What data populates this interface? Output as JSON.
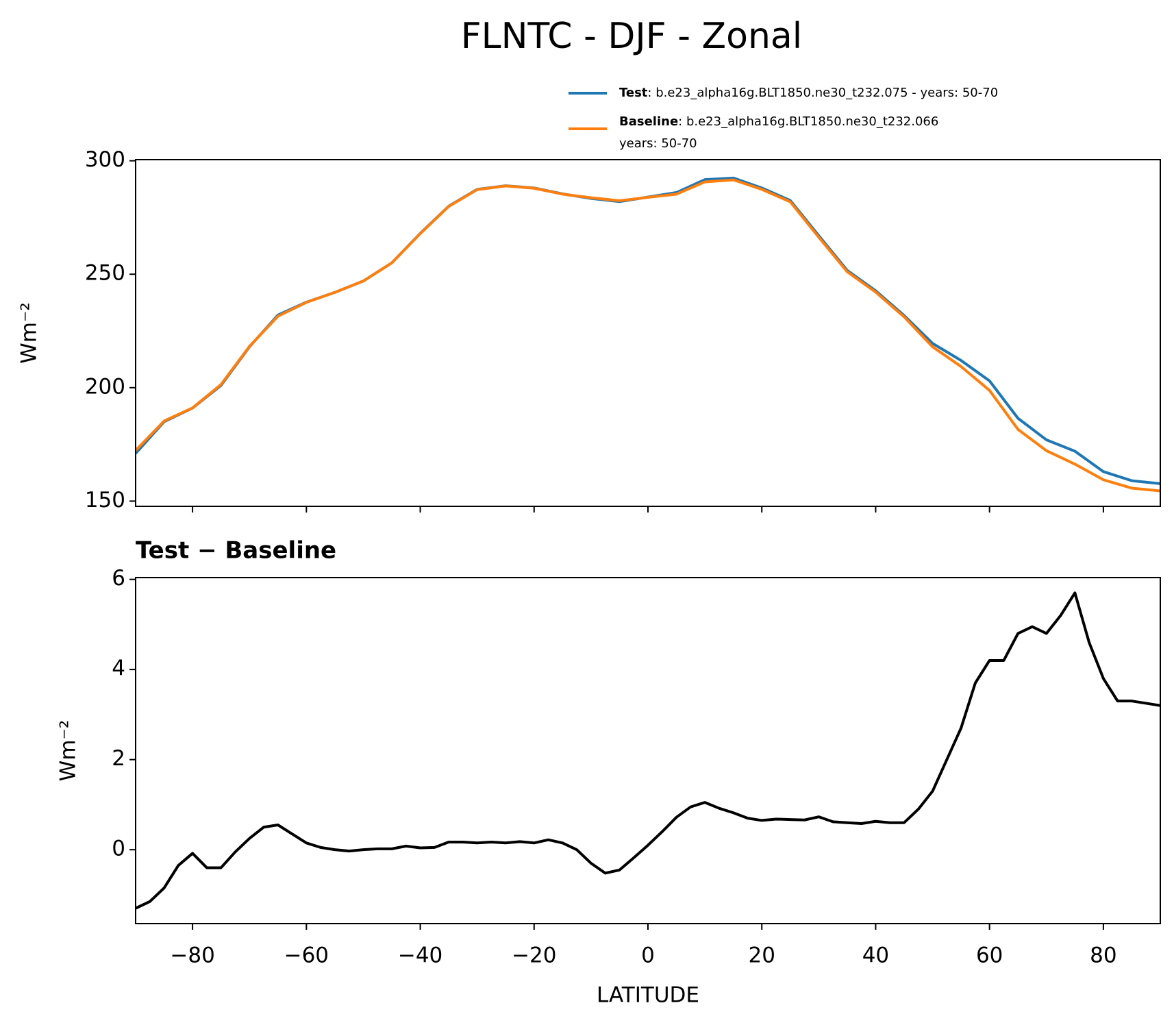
{
  "chart_data": [
    {
      "type": "line",
      "title": "FLNTC - DJF - Zonal",
      "ylabel": "Wm⁻²",
      "x": [
        -90,
        -85,
        -80,
        -75,
        -70,
        -65,
        -60,
        -55,
        -50,
        -45,
        -40,
        -35,
        -30,
        -25,
        -20,
        -15,
        -10,
        -5,
        0,
        5,
        10,
        15,
        20,
        25,
        30,
        35,
        40,
        45,
        50,
        55,
        60,
        65,
        70,
        75,
        80,
        85,
        90
      ],
      "series": [
        {
          "name": "Test",
          "legend_text": [
            ": b.e23_alpha16g.BLT1850.ne30_t232.075 - years: 50-70"
          ],
          "color": "#1f77b4",
          "values": [
            171,
            185,
            191,
            201,
            218,
            232,
            237.7,
            242,
            247,
            255,
            268,
            280,
            287.4,
            289,
            288,
            285.4,
            283.4,
            282,
            284,
            286,
            291.7,
            292.4,
            288,
            282.5,
            267,
            251.7,
            242.7,
            231.8,
            219.5,
            212,
            203,
            186.5,
            177,
            172,
            163,
            159,
            157.7
          ]
        },
        {
          "name": "Baseline",
          "legend_text": [
            ": b.e23_alpha16g.BLT1850.ne30_t232.066",
            "years: 50-70"
          ],
          "color": "#ff7f0e",
          "values": [
            172.3,
            185.3,
            191.1,
            201.4,
            218.2,
            231.5,
            237.6,
            242,
            247,
            255,
            267.9,
            279.9,
            287.3,
            288.9,
            287.9,
            285.3,
            283.7,
            282.4,
            283.9,
            285.3,
            290.7,
            291.6,
            287.4,
            281.9,
            266.3,
            251.1,
            242.1,
            231.2,
            218,
            209.3,
            198.8,
            181.6,
            172.2,
            166.3,
            159.4,
            155.7,
            154.5
          ]
        }
      ],
      "xlim": [
        -90,
        90
      ],
      "xticks": [
        -80,
        -60,
        -40,
        -20,
        0,
        20,
        40,
        60,
        80
      ],
      "xtick_labels": false,
      "ylim": [
        147.7,
        300.5
      ],
      "yticks": [
        150,
        200,
        250,
        300
      ],
      "grid": false
    },
    {
      "type": "line",
      "title": "Test − Baseline",
      "ylabel": "Wm⁻²",
      "xlabel": "LATITUDE",
      "x": [
        -90,
        -87.5,
        -85,
        -82.5,
        -80,
        -77.5,
        -75,
        -72.5,
        -70,
        -67.5,
        -65,
        -62.5,
        -60,
        -57.5,
        -55,
        -52.5,
        -50,
        -47.5,
        -45,
        -42.5,
        -40,
        -37.5,
        -35,
        -32.5,
        -30,
        -27.5,
        -25,
        -22.5,
        -20,
        -17.5,
        -15,
        -12.5,
        -10,
        -7.5,
        -5,
        -2.5,
        0,
        2.5,
        5,
        7.5,
        10,
        12.5,
        15,
        17.5,
        20,
        22.5,
        25,
        27.5,
        30,
        32.5,
        35,
        37.5,
        40,
        42.5,
        45,
        47.5,
        50,
        52.5,
        55,
        57.5,
        60,
        62.5,
        65,
        67.5,
        70,
        72.5,
        75,
        77.5,
        80,
        82.5,
        85,
        87.5,
        90
      ],
      "color": "#000000",
      "values": [
        -1.3,
        -1.15,
        -0.85,
        -0.35,
        -0.08,
        -0.4,
        -0.4,
        -0.05,
        0.25,
        0.5,
        0.55,
        0.35,
        0.15,
        0.05,
        0,
        -0.03,
        0,
        0.02,
        0.02,
        0.08,
        0.04,
        0.05,
        0.17,
        0.17,
        0.15,
        0.17,
        0.15,
        0.18,
        0.15,
        0.22,
        0.15,
        0,
        -0.3,
        -0.52,
        -0.45,
        -0.18,
        0.1,
        0.4,
        0.72,
        0.95,
        1.05,
        0.92,
        0.82,
        0.7,
        0.65,
        0.68,
        0.67,
        0.66,
        0.73,
        0.62,
        0.6,
        0.58,
        0.63,
        0.6,
        0.6,
        0.9,
        1.3,
        2.0,
        2.7,
        3.7,
        4.2,
        4.2,
        4.8,
        4.95,
        4.8,
        5.2,
        5.7,
        4.6,
        3.8,
        3.3,
        3.3,
        3.25,
        3.2
      ],
      "xlim": [
        -90,
        90
      ],
      "xticks": [
        {
          "value": -80,
          "label": "−80"
        },
        {
          "value": -60,
          "label": "−60"
        },
        {
          "value": -40,
          "label": "−40"
        },
        {
          "value": -20,
          "label": "−20"
        },
        0,
        20,
        40,
        60,
        80
      ],
      "ylim": [
        -1.64,
        6.04
      ],
      "yticks": [
        0,
        2,
        4,
        6
      ],
      "grid": false
    }
  ]
}
